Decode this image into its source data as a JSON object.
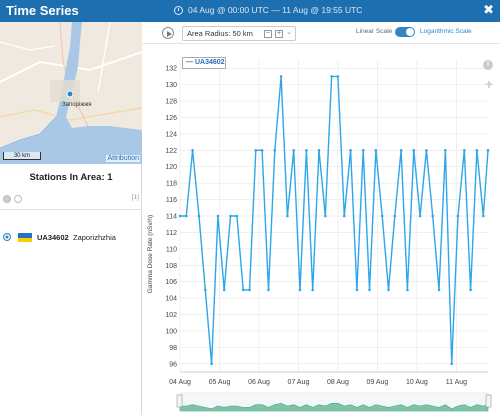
{
  "window": {
    "title": "Time Series",
    "date_range": "04 Aug @ 00:00 UTC  —  11 Aug @ 19:55 UTC",
    "close_label": "✖"
  },
  "map": {
    "attribution": "Attribution",
    "scale_label": "30 km",
    "city_label": "Запоріжжя"
  },
  "stations": {
    "title": "Stations In Area: 1",
    "count_badge": "[1]",
    "items": [
      {
        "id": "UA34602",
        "name": "Zaporizhzhia"
      }
    ]
  },
  "toolbar": {
    "radius_label": "Area Radius: 50 km",
    "radius_minus": "−",
    "radius_plus": "+",
    "linear_scale_label": "Linear Scale",
    "log_scale_label": "Logarithmic Scale",
    "log_scale_on": true
  },
  "colors": {
    "accent": "#1d6fb0",
    "series": "#2ea6e8",
    "flag_blue": "#2a6fc9",
    "flag_yellow": "#f5d000"
  },
  "chart_data": {
    "type": "line",
    "ylabel": "Gamma Dose Rate (nSv/h)",
    "ylim": [
      95,
      133
    ],
    "yticks": [
      96,
      98,
      100,
      102,
      104,
      106,
      108,
      110,
      112,
      114,
      116,
      118,
      120,
      122,
      124,
      126,
      128,
      130,
      132
    ],
    "xticks": [
      "04 Aug",
      "05 Aug",
      "06 Aug",
      "07 Aug",
      "08 Aug",
      "09 Aug",
      "10 Aug",
      "11 Aug"
    ],
    "xlim_days": [
      0,
      7.8
    ],
    "grid": true,
    "series": [
      {
        "name": "UA34602",
        "x": [
          0.0,
          0.16,
          0.32,
          0.48,
          0.64,
          0.8,
          0.96,
          1.12,
          1.28,
          1.44,
          1.6,
          1.76,
          1.92,
          2.08,
          2.24,
          2.4,
          2.56,
          2.72,
          2.88,
          3.04,
          3.2,
          3.36,
          3.52,
          3.68,
          3.84,
          4.0,
          4.16,
          4.32,
          4.48,
          4.64,
          4.8,
          4.96,
          5.12,
          5.28,
          5.44,
          5.6,
          5.76,
          5.92,
          6.08,
          6.24,
          6.4,
          6.56,
          6.72,
          6.88,
          7.04,
          7.2,
          7.36,
          7.52,
          7.68,
          7.8
        ],
        "values": [
          114,
          114,
          122,
          114,
          105,
          96,
          114,
          105,
          114,
          114,
          105,
          105,
          122,
          122,
          105,
          122,
          131,
          114,
          122,
          105,
          122,
          105,
          122,
          114,
          131,
          131,
          114,
          122,
          105,
          122,
          105,
          122,
          114,
          105,
          114,
          122,
          105,
          122,
          114,
          122,
          114,
          105,
          122,
          96,
          114,
          122,
          105,
          122,
          114,
          122
        ]
      }
    ]
  }
}
